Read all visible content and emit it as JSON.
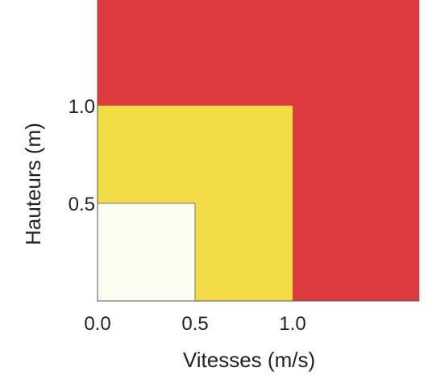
{
  "chart_data": {
    "type": "area",
    "xlabel": "Vitesses (m/s)",
    "ylabel": "Hauteurs (m)",
    "xlim": [
      0,
      1.65
    ],
    "ylim": [
      0,
      1.65
    ],
    "x_ticks": [
      "0.0",
      "0.5",
      "1.0"
    ],
    "y_ticks": [
      "0.5",
      "1.0"
    ],
    "zones": [
      {
        "x_max": 1.65,
        "y_max": 1.65,
        "color": "#de3b40"
      },
      {
        "x_max": 1.0,
        "y_max": 1.0,
        "color": "#f4dc46"
      },
      {
        "x_max": 0.5,
        "y_max": 0.5,
        "color": "#fcfdf0"
      }
    ],
    "grid": false,
    "legend": "none"
  }
}
